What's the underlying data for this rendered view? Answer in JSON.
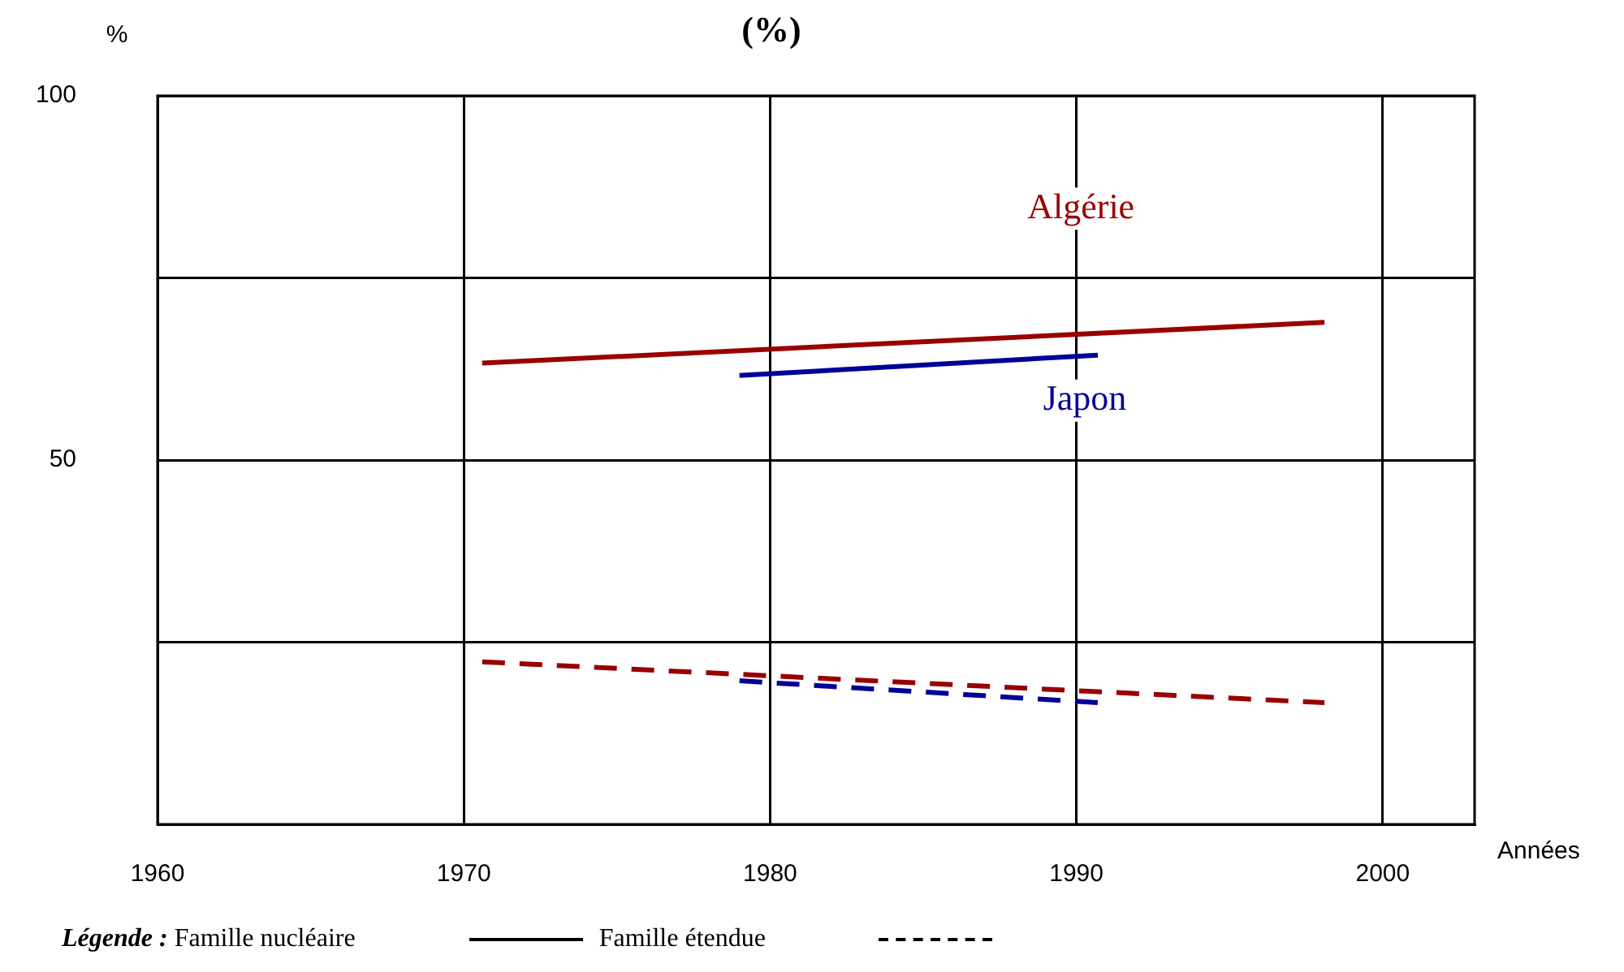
{
  "chart_data": {
    "type": "line",
    "title": "(%)",
    "xlabel": "Années",
    "ylabel": "%",
    "xlim": [
      1960,
      2003
    ],
    "xticks": [
      1960,
      1970,
      1980,
      1990,
      2000
    ],
    "ylim": [
      0,
      100
    ],
    "yticks": [
      {
        "value": 0,
        "label": null
      },
      {
        "value": 25,
        "label": null
      },
      50,
      {
        "value": 75,
        "label": null
      },
      100
    ],
    "grid": true,
    "marker": "none",
    "series": [
      {
        "name": "Algérie",
        "color": "#990000",
        "line_style": "solid",
        "x": [
          1970.6,
          1998.1
        ],
        "values": [
          63.3,
          68.9
        ]
      },
      {
        "name": "Japon",
        "color": "#000099",
        "line_style": "solid",
        "x": [
          1979,
          1990.7
        ],
        "values": [
          61.6,
          64.4
        ]
      },
      {
        "color": "#990000",
        "line_style": "dashed",
        "x": [
          1970.6,
          1998.1
        ],
        "values": [
          22.3,
          16.7
        ]
      },
      {
        "color": "#000099",
        "line_style": "dashed",
        "x": [
          1979,
          1990.7
        ],
        "values": [
          19.7,
          16.7
        ]
      }
    ],
    "annotations": [
      "Légende :",
      "Famille nucléaire",
      "Famille étendue"
    ]
  }
}
